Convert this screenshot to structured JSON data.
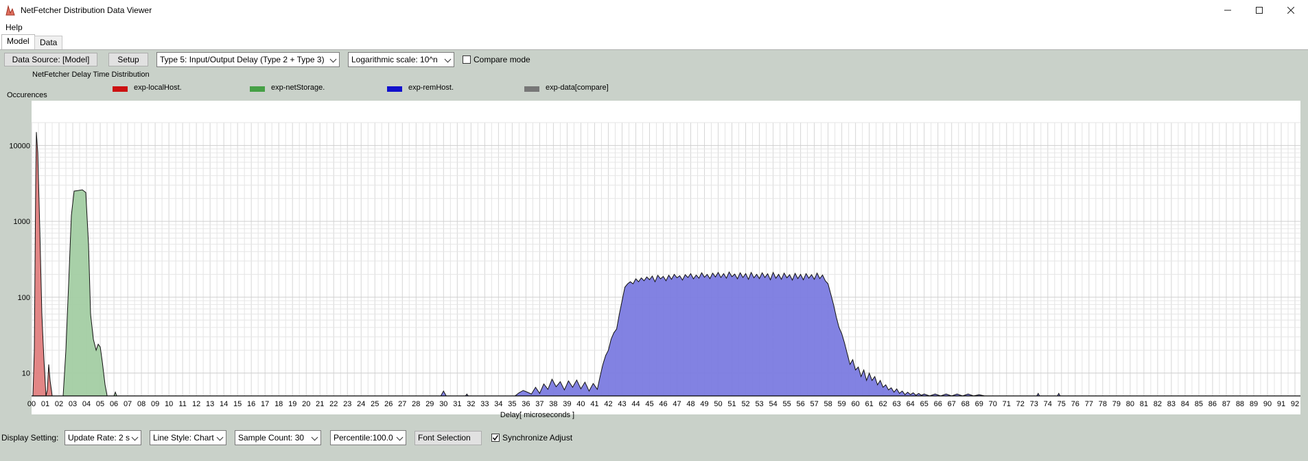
{
  "window": {
    "title": "NetFetcher Distribution Data Viewer",
    "icon": "chart-app-icon"
  },
  "menu": {
    "items": [
      "Help"
    ]
  },
  "tabs": [
    {
      "label": "Model",
      "active": true
    },
    {
      "label": "Data",
      "active": false
    }
  ],
  "toolbar": {
    "data_source_label": "Data Source: [Model]",
    "setup_label": "Setup",
    "type_select": "Type 5: Input/Output Delay (Type 2 + Type 3)",
    "scale_select": "Logarithmic scale: 10^n",
    "compare_label": "Compare mode",
    "compare_checked": false
  },
  "bottom": {
    "display_label": "Display Setting:",
    "update_rate": "Update Rate: 2 s",
    "line_style": "Line Style: Chart",
    "sample_count": "Sample Count: 30",
    "percentile": "Percentile:100.0",
    "font_selection": "Font Selection",
    "sync_label": "Synchronize Adjust",
    "sync_checked": true
  },
  "chart_data": {
    "type": "area",
    "title": "NetFetcher Delay Time Distribution",
    "ylabel": "Occurences",
    "xlabel": "Delay[ microseconds ]",
    "y_scale": "log",
    "yticks": [
      10,
      100,
      1000,
      10000
    ],
    "ylim": [
      5,
      20000
    ],
    "xlim": [
      0,
      92.4
    ],
    "x_tick_labels": [
      "00",
      "01",
      "02",
      "03",
      "04",
      "05",
      "06",
      "07",
      "08",
      "09",
      "10",
      "11",
      "12",
      "13",
      "14",
      "15",
      "16",
      "17",
      "18",
      "19",
      "20",
      "21",
      "22",
      "23",
      "24",
      "25",
      "26",
      "27",
      "28",
      "29",
      "30",
      "31",
      "32",
      "33",
      "34",
      "35",
      "36",
      "37",
      "38",
      "39",
      "40",
      "41",
      "42",
      "43",
      "44",
      "45",
      "46",
      "47",
      "48",
      "49",
      "50",
      "51",
      "52",
      "53",
      "54",
      "55",
      "56",
      "57",
      "58",
      "59",
      "60",
      "61",
      "62",
      "63",
      "64",
      "65",
      "66",
      "67",
      "68",
      "69",
      "70",
      "71",
      "72",
      "73",
      "74",
      "75",
      "76",
      "77",
      "78",
      "79",
      "80",
      "81",
      "82",
      "83",
      "84",
      "85",
      "86",
      "87",
      "88",
      "89",
      "90",
      "91",
      "92"
    ],
    "grid": true,
    "legend_position": "top",
    "series": [
      {
        "name": "exp-localHost.",
        "color": "#cc1111",
        "fill": "#e08080",
        "points": [
          [
            0.1,
            5
          ],
          [
            0.2,
            20
          ],
          [
            0.3,
            3000
          ],
          [
            0.35,
            15000
          ],
          [
            0.45,
            8000
          ],
          [
            0.6,
            800
          ],
          [
            0.75,
            60
          ],
          [
            0.9,
            15
          ],
          [
            1.05,
            5
          ],
          [
            1.15,
            6
          ],
          [
            1.25,
            13
          ],
          [
            1.35,
            8
          ],
          [
            1.5,
            5
          ]
        ]
      },
      {
        "name": "exp-netStorage.",
        "color": "#2e8b2e",
        "fill": "#a3cda3",
        "points": [
          [
            2.3,
            5
          ],
          [
            2.5,
            20
          ],
          [
            2.7,
            150
          ],
          [
            2.9,
            1200
          ],
          [
            3.1,
            2500
          ],
          [
            3.4,
            2550
          ],
          [
            3.7,
            2600
          ],
          [
            3.95,
            2400
          ],
          [
            4.15,
            500
          ],
          [
            4.3,
            60
          ],
          [
            4.5,
            28
          ],
          [
            4.7,
            20
          ],
          [
            4.85,
            24
          ],
          [
            5.0,
            22
          ],
          [
            5.15,
            14
          ],
          [
            5.35,
            7
          ],
          [
            5.5,
            5
          ],
          [
            6.0,
            5
          ],
          [
            6.1,
            5.6
          ],
          [
            6.2,
            5
          ]
        ]
      },
      {
        "name": "exp-remHost.",
        "color": "#1111cc",
        "fill": "#7b7be0",
        "points": [
          [
            29.8,
            5
          ],
          [
            30.0,
            5.8
          ],
          [
            30.2,
            5
          ],
          [
            31.6,
            5
          ],
          [
            31.7,
            5.3
          ],
          [
            31.8,
            5
          ],
          [
            35.2,
            5
          ],
          [
            35.5,
            5.5
          ],
          [
            35.8,
            5.9
          ],
          [
            36.1,
            5.6
          ],
          [
            36.4,
            5.3
          ],
          [
            36.7,
            6.5
          ],
          [
            37.0,
            5.4
          ],
          [
            37.3,
            7.2
          ],
          [
            37.6,
            6.1
          ],
          [
            37.9,
            8.3
          ],
          [
            38.2,
            6.6
          ],
          [
            38.5,
            7.7
          ],
          [
            38.8,
            6.0
          ],
          [
            39.1,
            7.9
          ],
          [
            39.4,
            6.5
          ],
          [
            39.7,
            8.1
          ],
          [
            40.0,
            6.2
          ],
          [
            40.3,
            7.6
          ],
          [
            40.6,
            5.8
          ],
          [
            40.9,
            7.3
          ],
          [
            41.2,
            6.1
          ],
          [
            41.4,
            9
          ],
          [
            41.6,
            13
          ],
          [
            41.8,
            17
          ],
          [
            42.0,
            20
          ],
          [
            42.2,
            28
          ],
          [
            42.4,
            34
          ],
          [
            42.6,
            38
          ],
          [
            42.8,
            60
          ],
          [
            43.0,
            90
          ],
          [
            43.2,
            135
          ],
          [
            43.4,
            150
          ],
          [
            43.6,
            160
          ],
          [
            43.8,
            150
          ],
          [
            44.0,
            175
          ],
          [
            44.2,
            160
          ],
          [
            44.4,
            180
          ],
          [
            44.6,
            165
          ],
          [
            44.8,
            185
          ],
          [
            45.0,
            170
          ],
          [
            45.2,
            190
          ],
          [
            45.4,
            160
          ],
          [
            45.6,
            195
          ],
          [
            45.8,
            175
          ],
          [
            46.0,
            188
          ],
          [
            46.2,
            165
          ],
          [
            46.4,
            195
          ],
          [
            46.6,
            172
          ],
          [
            46.8,
            200
          ],
          [
            47.0,
            180
          ],
          [
            47.2,
            192
          ],
          [
            47.4,
            168
          ],
          [
            47.6,
            198
          ],
          [
            47.8,
            182
          ],
          [
            48.0,
            205
          ],
          [
            48.2,
            175
          ],
          [
            48.4,
            196
          ],
          [
            48.6,
            178
          ],
          [
            48.8,
            210
          ],
          [
            49.0,
            183
          ],
          [
            49.2,
            200
          ],
          [
            49.4,
            176
          ],
          [
            49.6,
            208
          ],
          [
            49.8,
            185
          ],
          [
            50.0,
            212
          ],
          [
            50.2,
            182
          ],
          [
            50.4,
            205
          ],
          [
            50.6,
            178
          ],
          [
            50.8,
            215
          ],
          [
            51.0,
            186
          ],
          [
            51.2,
            202
          ],
          [
            51.4,
            175
          ],
          [
            51.6,
            210
          ],
          [
            51.8,
            182
          ],
          [
            52.0,
            205
          ],
          [
            52.2,
            172
          ],
          [
            52.4,
            212
          ],
          [
            52.6,
            180
          ],
          [
            52.8,
            200
          ],
          [
            53.0,
            176
          ],
          [
            53.2,
            210
          ],
          [
            53.4,
            182
          ],
          [
            53.6,
            204
          ],
          [
            53.8,
            170
          ],
          [
            54.0,
            212
          ],
          [
            54.2,
            178
          ],
          [
            54.4,
            200
          ],
          [
            54.6,
            172
          ],
          [
            54.8,
            208
          ],
          [
            55.0,
            180
          ],
          [
            55.2,
            198
          ],
          [
            55.4,
            168
          ],
          [
            55.6,
            206
          ],
          [
            55.8,
            176
          ],
          [
            56.0,
            200
          ],
          [
            56.2,
            170
          ],
          [
            56.4,
            205
          ],
          [
            56.6,
            178
          ],
          [
            56.8,
            198
          ],
          [
            57.0,
            172
          ],
          [
            57.2,
            208
          ],
          [
            57.4,
            176
          ],
          [
            57.6,
            196
          ],
          [
            57.8,
            165
          ],
          [
            58.0,
            150
          ],
          [
            58.2,
            110
          ],
          [
            58.4,
            80
          ],
          [
            58.6,
            55
          ],
          [
            58.8,
            40
          ],
          [
            59.0,
            33
          ],
          [
            59.2,
            25
          ],
          [
            59.4,
            18
          ],
          [
            59.6,
            13
          ],
          [
            59.8,
            15
          ],
          [
            60.0,
            11
          ],
          [
            60.2,
            12
          ],
          [
            60.4,
            9
          ],
          [
            60.6,
            11
          ],
          [
            60.8,
            8
          ],
          [
            61.0,
            10
          ],
          [
            61.2,
            8
          ],
          [
            61.4,
            9
          ],
          [
            61.6,
            7
          ],
          [
            61.8,
            8
          ],
          [
            62.0,
            6.5
          ],
          [
            62.2,
            7
          ],
          [
            62.4,
            6
          ],
          [
            62.6,
            6.4
          ],
          [
            62.8,
            5.6
          ],
          [
            63.0,
            6.2
          ],
          [
            63.2,
            5.4
          ],
          [
            63.4,
            5.8
          ],
          [
            63.6,
            5.2
          ],
          [
            63.8,
            5.6
          ],
          [
            64.0,
            5.2
          ],
          [
            64.2,
            5.5
          ],
          [
            64.4,
            5.1
          ],
          [
            64.6,
            5.4
          ],
          [
            64.8,
            5.1
          ],
          [
            65.0,
            5.3
          ],
          [
            65.4,
            5.0
          ],
          [
            65.8,
            5.3
          ],
          [
            66.2,
            5.0
          ],
          [
            66.6,
            5.3
          ],
          [
            67.0,
            5.0
          ],
          [
            67.4,
            5.3
          ],
          [
            67.8,
            5.0
          ],
          [
            68.2,
            5.3
          ],
          [
            68.6,
            5.0
          ],
          [
            69.0,
            5.2
          ],
          [
            69.4,
            5.0
          ],
          [
            73.2,
            5.0
          ],
          [
            73.3,
            5.4
          ],
          [
            73.4,
            5.0
          ],
          [
            74.7,
            5.0
          ],
          [
            74.8,
            5.4
          ],
          [
            74.9,
            5.0
          ]
        ]
      },
      {
        "name": "exp-data[compare]",
        "color": "#777777",
        "fill": "#999999",
        "points": []
      }
    ]
  }
}
